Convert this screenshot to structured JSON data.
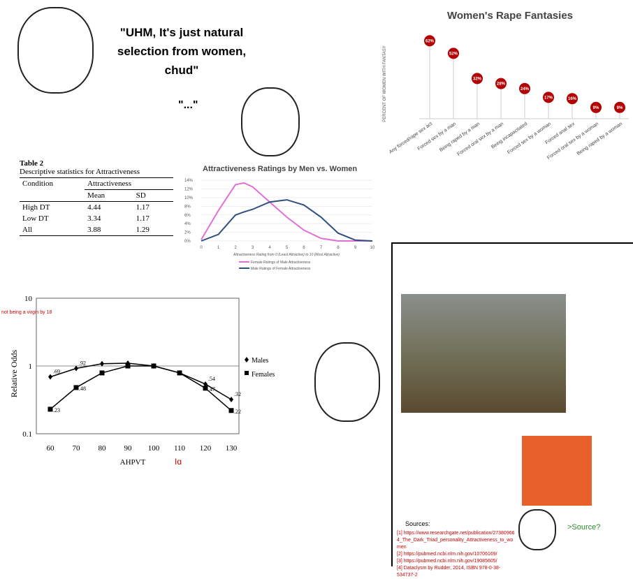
{
  "fantasy_chart": {
    "chart_data": {
      "type": "lollipop",
      "title": "Women's Rape Fantasies",
      "ylabel": "PERCENT OF WOMEN WITH FANTASY",
      "categories": [
        "Any forced/rape sex act",
        "Forced sex by a man",
        "Being raped by a man",
        "Forced oral sex by a man",
        "Being incapacitated",
        "Forced sex by a woman",
        "Forced anal sex",
        "Forced oral sex by a woman",
        "Being raped by a woman"
      ],
      "values": [
        62,
        52,
        32,
        28,
        24,
        17,
        16,
        9,
        9
      ],
      "labels": [
        "62%",
        "52%",
        "32%",
        "28%",
        "24%",
        "17%",
        "16%",
        "9%",
        "9%"
      ],
      "color": "#b30000"
    }
  },
  "table": {
    "title": "Table 2",
    "subtitle": "Descriptive statistics for Attractiveness",
    "col_condition": "Condition",
    "col_group": "Attractiveness",
    "col_mean": "Mean",
    "col_sd": "SD",
    "rows": [
      [
        "High DT",
        "4.44",
        "1.17"
      ],
      [
        "Low DT",
        "3.34",
        "1.17"
      ],
      [
        "All",
        "3.88",
        "1.29"
      ]
    ]
  },
  "rating_chart": {
    "chart_data": {
      "type": "line",
      "title": "Attractiveness Ratings by Men vs. Women",
      "xlabel": "Attractiveness Rating from 0 (Least Attractive) to 10 (Most Attractive)",
      "x": [
        0,
        1,
        2,
        2.5,
        3,
        4,
        5,
        6,
        7,
        8,
        9,
        10
      ],
      "xlim": [
        0,
        10
      ],
      "ylim": [
        0,
        14
      ],
      "yticks": [
        "0%",
        "2%",
        "4%",
        "6%",
        "8%",
        "10%",
        "12%",
        "14%"
      ],
      "series": [
        {
          "name": "Female Ratings of Male Attractiveness",
          "color": "#e070d8",
          "values": [
            0.3,
            7,
            13,
            13.4,
            12.5,
            9,
            5.5,
            2.5,
            0.6,
            0,
            0,
            0
          ]
        },
        {
          "name": "Male Ratings of Female Attractiveness",
          "color": "#2f4f7f",
          "values": [
            0,
            1.5,
            6,
            6.7,
            7.3,
            9,
            9.5,
            8.3,
            5.5,
            1.8,
            0.2,
            0
          ]
        }
      ]
    }
  },
  "iq_chart": {
    "chart_data": {
      "type": "line",
      "log_y": true,
      "ylim": [
        0.1,
        10
      ],
      "ylabel": "Relative Odds",
      "xlabel": "AHPVT",
      "annotation": "not being a virgin by 18",
      "xlabel_annotation": "Iq",
      "x": [
        60,
        70,
        80,
        90,
        100,
        110,
        120,
        130
      ],
      "series": [
        {
          "name": "Males",
          "marker": "diamond",
          "values": [
            0.69,
            0.92,
            1.08,
            1.1,
            1,
            0.79,
            0.54,
            0.32
          ],
          "labels": [
            ".69",
            ".92",
            "",
            "",
            "",
            "",
            ".54",
            ".32"
          ]
        },
        {
          "name": "Females",
          "marker": "square",
          "values": [
            0.23,
            0.48,
            0.79,
            1,
            1,
            0.79,
            0.47,
            0.22
          ],
          "labels": [
            ".23",
            ".48",
            "",
            "",
            "",
            "",
            ".47",
            ".22"
          ]
        }
      ]
    }
  },
  "speech": {
    "top": "\"UHM, It's just natural selection from women, chud\"",
    "dots": "\"...\"",
    "source_q": ">Source?"
  },
  "sources": {
    "heading": "Sources:",
    "items": [
      "[1] https://www.researchgate.net/publication/273809664_The_Dark_Triad_personality_Attractiveness_to_women",
      "[2] https://pubmed.ncbi.nlm.nih.gov/10706169/",
      "[3] https://pubmed.ncbi.nlm.nih.gov/19085605/",
      "[4] Dataclysm by Rudder, 2014, ISBN 978-0-38-534737-2"
    ]
  }
}
